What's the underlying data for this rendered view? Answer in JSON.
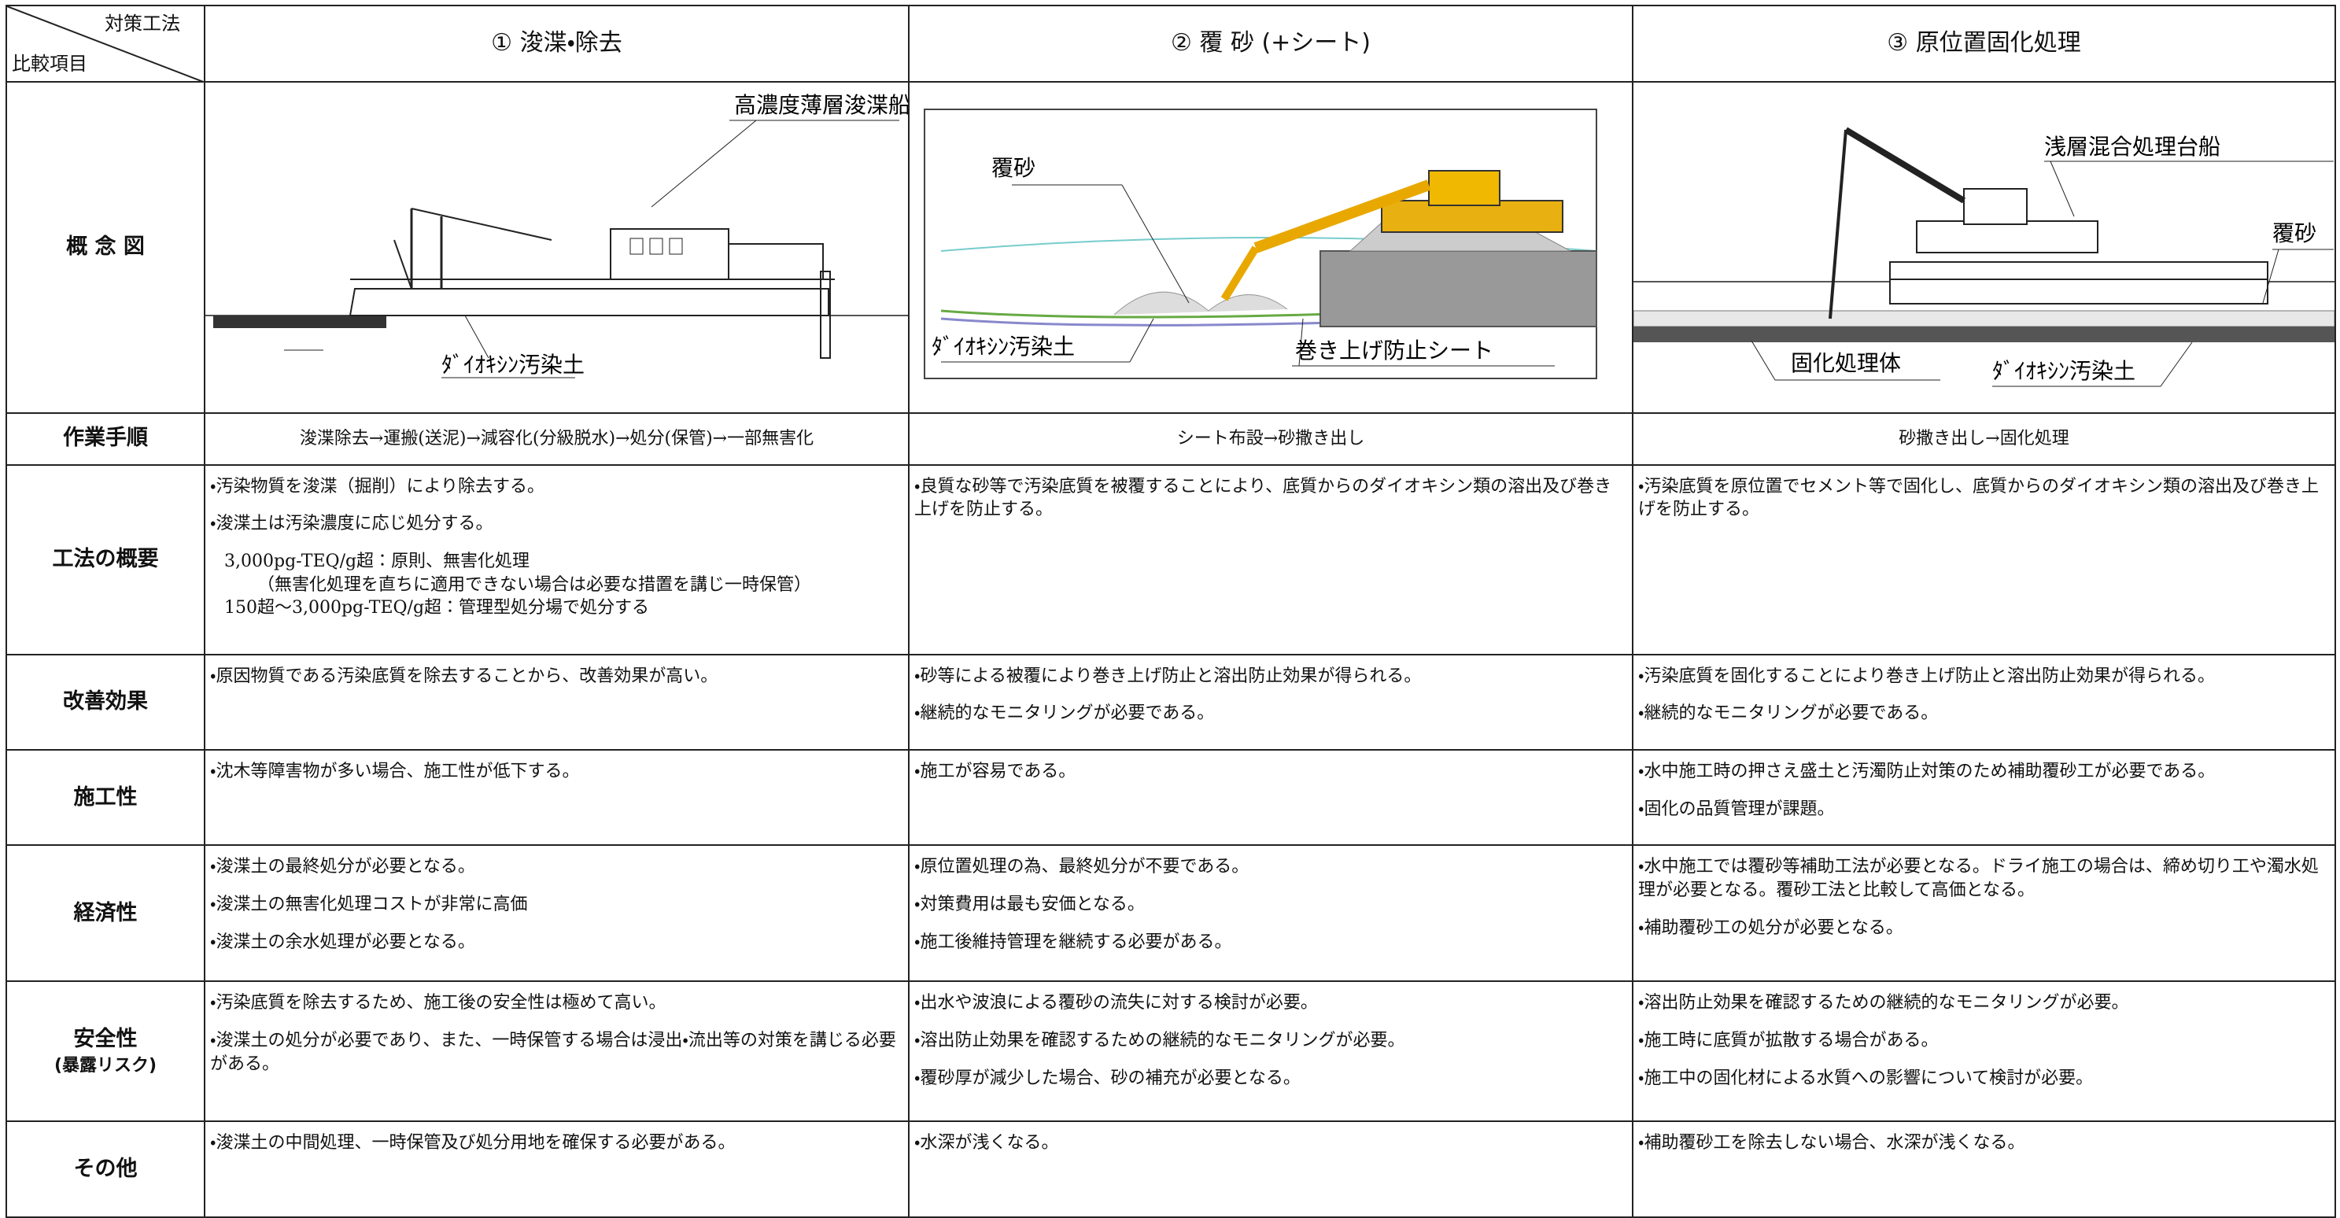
{
  "header": {
    "corner_top": "対策工法",
    "corner_bottom": "比較項目",
    "columns": [
      "① 浚渫・除去",
      "② 覆 砂 (+シート)",
      "③ 原位置固化処理"
    ]
  },
  "figure_row": {
    "label": "概 念 図",
    "columns": [
      {
        "labels": [
          "高濃度薄層浚渫船",
          "ﾀﾞｲｵｷｼﾝ汚染土"
        ]
      },
      {
        "labels": [
          "覆砂",
          "ﾀﾞｲｵｷｼﾝ汚染土",
          "巻き上げ防止シート"
        ]
      },
      {
        "labels": [
          "浅層混合処理台船",
          "覆砂",
          "固化処理体",
          "ﾀﾞｲｵｷｼﾝ汚染土"
        ]
      }
    ]
  },
  "rows": [
    {
      "label": "作業手順",
      "cells": [
        [
          "浚渫除去→運搬(送泥)→減容化(分級脱水)→処分(保管)→一部無害化"
        ],
        [
          "シート布設→砂撒き出し"
        ],
        [
          "砂撒き出し→固化処理"
        ]
      ]
    },
    {
      "label": "工法の概要",
      "cells": [
        [
          "・汚染物質を浚渫（掘削）により除去する。",
          "・浚渫土は汚染濃度に応じ処分する。",
          "3,000pg-TEQ/g超：原則、無害化処理",
          "（無害化処理を直ちに適用できない場合は必要な措置を講じ一時保管）",
          "150超～3,000pg-TEQ/g超：管理型処分場で処分する"
        ],
        [
          "・良質な砂等で汚染底質を被覆することにより、底質からのダイオキシン類の溶出及び巻き上げを防止する。"
        ],
        [
          "・汚染底質を原位置でセメント等で固化し、底質からのダイオキシン類の溶出及び巻き上げを防止する。"
        ]
      ]
    },
    {
      "label": "改善効果",
      "cells": [
        [
          "・原因物質である汚染底質を除去することから、改善効果が高い。"
        ],
        [
          "・砂等による被覆により巻き上げ防止と溶出防止効果が得られる。",
          "・継続的なモニタリングが必要である。"
        ],
        [
          "・汚染底質を固化することにより巻き上げ防止と溶出防止効果が得られる。",
          "・継続的なモニタリングが必要である。"
        ]
      ]
    },
    {
      "label": "施工性",
      "cells": [
        [
          "・沈木等障害物が多い場合、施工性が低下する。"
        ],
        [
          "・施工が容易である。"
        ],
        [
          "・水中施工時の押さえ盛土と汚濁防止対策のため補助覆砂工が必要である。",
          "・固化の品質管理が課題。"
        ]
      ]
    },
    {
      "label": "経済性",
      "cells": [
        [
          "・浚渫土の最終処分が必要となる。",
          "・浚渫土の無害化処理コストが非常に高価",
          "・浚渫土の余水処理が必要となる。"
        ],
        [
          "・原位置処理の為、最終処分が不要である。",
          "・対策費用は最も安価となる。",
          "・施工後維持管理を継続する必要がある。"
        ],
        [
          "・水中施工では覆砂等補助工法が必要となる。ドライ施工の場合は、締め切り工や濁水処理が必要となる。覆砂工法と比較して高価となる。",
          "・補助覆砂工の処分が必要となる。"
        ]
      ]
    },
    {
      "label": "安全性",
      "sublabel": "(暴露リスク)",
      "cells": [
        [
          "・汚染底質を除去するため、施工後の安全性は極めて高い。",
          "・浚渫土の処分が必要であり、また、一時保管する場合は浸出・流出等の対策を講じる必要がある。"
        ],
        [
          "・出水や波浪による覆砂の流失に対する検討が必要。",
          "・溶出防止効果を確認するための継続的なモニタリングが必要。",
          "・覆砂厚が減少した場合、砂の補充が必要となる。"
        ],
        [
          "・溶出防止効果を確認するための継続的なモニタリングが必要。",
          "・施工時に底質が拡散する場合がある。",
          "・施工中の固化材による水質への影響について検討が必要。"
        ]
      ]
    },
    {
      "label": "その他",
      "cells": [
        [
          "・浚渫土の中間処理、一時保管及び処分用地を確保する必要がある。"
        ],
        [
          "・水深が浅くなる。"
        ],
        [
          "・補助覆砂工を除去しない場合、水深が浅くなる。"
        ]
      ]
    }
  ]
}
